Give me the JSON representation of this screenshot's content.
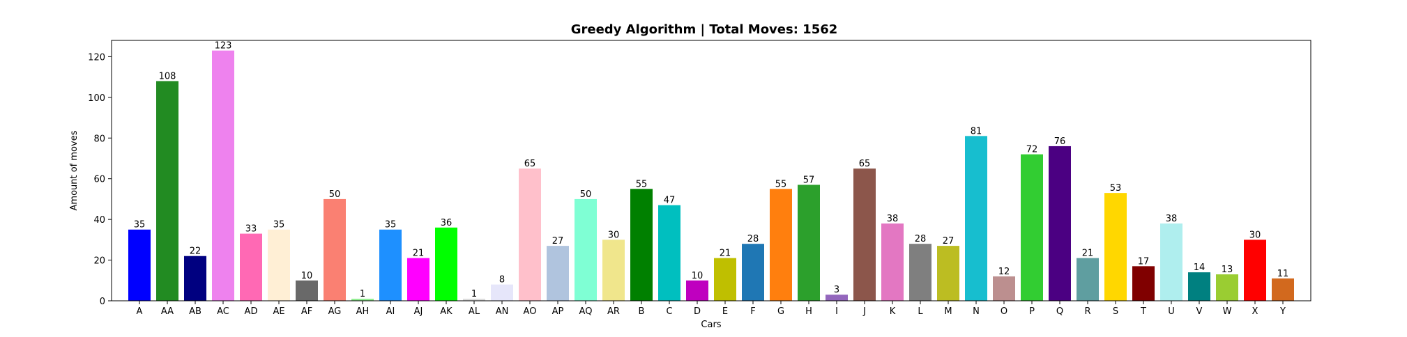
{
  "chart_data": {
    "type": "bar",
    "title": "Greedy Algorithm | Total Moves: 1562",
    "xlabel": "Cars",
    "ylabel": "Amount of moves",
    "ylim": [
      0,
      128
    ],
    "yticks": [
      0,
      20,
      40,
      60,
      80,
      100,
      120
    ],
    "grid": false,
    "categories": [
      "A",
      "AA",
      "AB",
      "AC",
      "AD",
      "AE",
      "AF",
      "AG",
      "AH",
      "AI",
      "AJ",
      "AK",
      "AL",
      "AN",
      "AO",
      "AP",
      "AQ",
      "AR",
      "B",
      "C",
      "D",
      "E",
      "F",
      "G",
      "H",
      "I",
      "J",
      "K",
      "L",
      "M",
      "N",
      "O",
      "P",
      "Q",
      "R",
      "S",
      "T",
      "U",
      "V",
      "W",
      "X",
      "Y"
    ],
    "values": [
      35,
      108,
      22,
      123,
      33,
      35,
      10,
      50,
      1,
      35,
      21,
      36,
      1,
      8,
      65,
      27,
      50,
      30,
      55,
      47,
      10,
      21,
      28,
      55,
      57,
      3,
      65,
      38,
      28,
      27,
      81,
      12,
      72,
      76,
      21,
      53,
      17,
      38,
      14,
      13,
      30,
      11
    ],
    "colors": [
      "#0000ff",
      "#228b22",
      "#000080",
      "#ee82ee",
      "#ff69b4",
      "#ffefd5",
      "#696969",
      "#fa8072",
      "#90ee90",
      "#1e90ff",
      "#ff00ff",
      "#00ff00",
      "#dcdcdc",
      "#e6e6fa",
      "#ffc0cb",
      "#b0c4de",
      "#7fffd4",
      "#f0e68c",
      "#008000",
      "#00bfbf",
      "#bf00bf",
      "#bfbf00",
      "#1f77b4",
      "#ff7f0e",
      "#2ca02c",
      "#9467bd",
      "#8c564b",
      "#e377c2",
      "#7f7f7f",
      "#bcbd22",
      "#17becf",
      "#bc8f8f",
      "#32cd32",
      "#4b0082",
      "#5f9ea0",
      "#ffd700",
      "#800000",
      "#afeeee",
      "#008080",
      "#9acd32",
      "#ff0000",
      "#d2691e"
    ]
  }
}
